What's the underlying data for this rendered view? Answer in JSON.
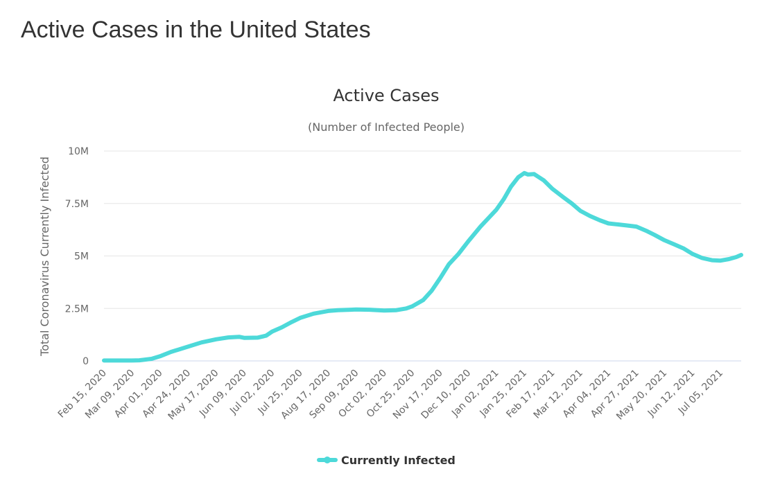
{
  "page": {
    "title": "Active Cases in the United States"
  },
  "colors": {
    "series": "#4dd9d9",
    "grid": "#e6e6e6",
    "axis": "#ccd6eb"
  },
  "chart_data": {
    "type": "line",
    "title": "Active Cases",
    "subtitle": "(Number of Infected People)",
    "ylabel": "Total Coronavirus Currently Infected",
    "xlabel": "",
    "ylim": [
      0,
      10000000
    ],
    "y_ticks": [
      {
        "value": 0,
        "label": "0"
      },
      {
        "value": 2500000,
        "label": "2.5M"
      },
      {
        "value": 5000000,
        "label": "5M"
      },
      {
        "value": 7500000,
        "label": "7.5M"
      },
      {
        "value": 10000000,
        "label": "10M"
      }
    ],
    "x_range": [
      "2020-02-15",
      "2021-07-22"
    ],
    "x_ticks": [
      "Feb 15, 2020",
      "Mar 09, 2020",
      "Apr 01, 2020",
      "Apr 24, 2020",
      "May 17, 2020",
      "Jun 09, 2020",
      "Jul 02, 2020",
      "Jul 25, 2020",
      "Aug 17, 2020",
      "Sep 09, 2020",
      "Oct 02, 2020",
      "Oct 25, 2020",
      "Nov 17, 2020",
      "Dec 10, 2020",
      "Jan 02, 2021",
      "Jan 25, 2021",
      "Feb 17, 2021",
      "Mar 12, 2021",
      "Apr 04, 2021",
      "Apr 27, 2021",
      "May 20, 2021",
      "Jun 12, 2021",
      "Jul 05, 2021"
    ],
    "grid": true,
    "legend": {
      "position": "bottom",
      "items": [
        "Currently Infected"
      ]
    },
    "series": [
      {
        "name": "Currently Infected",
        "points": [
          [
            "2020-02-15",
            20000
          ],
          [
            "2020-03-09",
            20000
          ],
          [
            "2020-03-15",
            30000
          ],
          [
            "2020-03-25",
            100000
          ],
          [
            "2020-04-01",
            220000
          ],
          [
            "2020-04-10",
            430000
          ],
          [
            "2020-04-24",
            680000
          ],
          [
            "2020-05-05",
            880000
          ],
          [
            "2020-05-17",
            1030000
          ],
          [
            "2020-05-27",
            1120000
          ],
          [
            "2020-06-05",
            1150000
          ],
          [
            "2020-06-09",
            1100000
          ],
          [
            "2020-06-20",
            1110000
          ],
          [
            "2020-06-27",
            1200000
          ],
          [
            "2020-07-02",
            1400000
          ],
          [
            "2020-07-10",
            1600000
          ],
          [
            "2020-07-18",
            1850000
          ],
          [
            "2020-07-25",
            2050000
          ],
          [
            "2020-08-05",
            2250000
          ],
          [
            "2020-08-17",
            2380000
          ],
          [
            "2020-08-25",
            2420000
          ],
          [
            "2020-09-09",
            2450000
          ],
          [
            "2020-09-20",
            2440000
          ],
          [
            "2020-10-02",
            2400000
          ],
          [
            "2020-10-12",
            2420000
          ],
          [
            "2020-10-20",
            2500000
          ],
          [
            "2020-10-25",
            2600000
          ],
          [
            "2020-11-03",
            2900000
          ],
          [
            "2020-11-10",
            3350000
          ],
          [
            "2020-11-17",
            3950000
          ],
          [
            "2020-11-24",
            4600000
          ],
          [
            "2020-12-02",
            5100000
          ],
          [
            "2020-12-10",
            5700000
          ],
          [
            "2020-12-20",
            6400000
          ],
          [
            "2021-01-02",
            7200000
          ],
          [
            "2021-01-08",
            7700000
          ],
          [
            "2021-01-14",
            8300000
          ],
          [
            "2021-01-20",
            8750000
          ],
          [
            "2021-01-25",
            8950000
          ],
          [
            "2021-01-28",
            8880000
          ],
          [
            "2021-02-02",
            8900000
          ],
          [
            "2021-02-10",
            8600000
          ],
          [
            "2021-02-17",
            8200000
          ],
          [
            "2021-02-26",
            7800000
          ],
          [
            "2021-03-05",
            7500000
          ],
          [
            "2021-03-12",
            7150000
          ],
          [
            "2021-03-20",
            6900000
          ],
          [
            "2021-03-28",
            6700000
          ],
          [
            "2021-04-04",
            6550000
          ],
          [
            "2021-04-12",
            6500000
          ],
          [
            "2021-04-20",
            6450000
          ],
          [
            "2021-04-27",
            6400000
          ],
          [
            "2021-05-05",
            6200000
          ],
          [
            "2021-05-12",
            6000000
          ],
          [
            "2021-05-20",
            5750000
          ],
          [
            "2021-05-28",
            5550000
          ],
          [
            "2021-06-05",
            5350000
          ],
          [
            "2021-06-12",
            5100000
          ],
          [
            "2021-06-20",
            4900000
          ],
          [
            "2021-06-28",
            4800000
          ],
          [
            "2021-07-05",
            4780000
          ],
          [
            "2021-07-12",
            4850000
          ],
          [
            "2021-07-18",
            4950000
          ],
          [
            "2021-07-22",
            5050000
          ]
        ]
      }
    ]
  }
}
